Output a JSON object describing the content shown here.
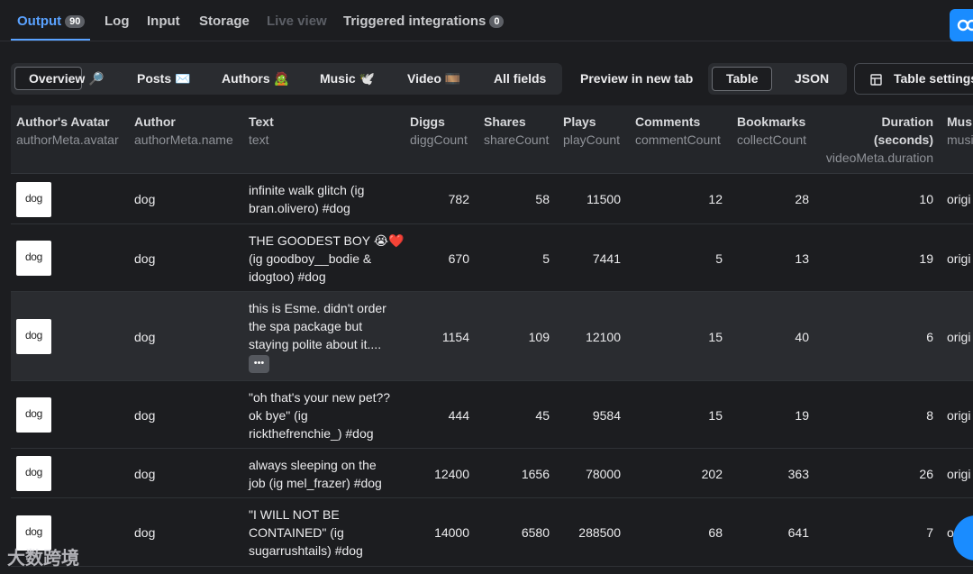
{
  "tabs": [
    {
      "label": "Output",
      "badge": "90"
    },
    {
      "label": "Log"
    },
    {
      "label": "Input"
    },
    {
      "label": "Storage"
    },
    {
      "label": "Live view"
    },
    {
      "label": "Triggered integrations",
      "badge": "0"
    }
  ],
  "views": [
    {
      "label": "Overview 🔎"
    },
    {
      "label": "Posts ✉️"
    },
    {
      "label": "Authors 🧟"
    },
    {
      "label": "Music 🕊️"
    },
    {
      "label": "Video 🎞️"
    },
    {
      "label": "All fields"
    }
  ],
  "preview_label": "Preview in new tab",
  "view_toggle": {
    "table": "Table",
    "json": "JSON"
  },
  "table_settings_label": "Table settings",
  "columns": [
    {
      "title": "Author's Avatar",
      "field": "authorMeta.avatar"
    },
    {
      "title": "Author",
      "field": "authorMeta.name"
    },
    {
      "title": "Text",
      "field": "text"
    },
    {
      "title": "Diggs",
      "field": "diggCount"
    },
    {
      "title": "Shares",
      "field": "shareCount"
    },
    {
      "title": "Plays",
      "field": "playCount"
    },
    {
      "title": "Comments",
      "field": "commentCount"
    },
    {
      "title": "Bookmarks",
      "field": "collectCount"
    },
    {
      "title": "Duration",
      "title2": "(seconds)",
      "field": "videoMeta.duration"
    },
    {
      "title": "Mus",
      "field": "musi"
    }
  ],
  "avatar_text": "dog",
  "rows": [
    {
      "author": "dog",
      "text": [
        "infinite walk glitch (ig",
        "bran.olivero) #dog"
      ],
      "diggs": "782",
      "shares": "58",
      "plays": "11500",
      "comments": "12",
      "bookmarks": "28",
      "duration": "10",
      "music": "origi"
    },
    {
      "author": "dog",
      "text": [
        "THE GOODEST BOY 😭❤️",
        "(ig goodboy__bodie &",
        "idogtoo) #dog"
      ],
      "diggs": "670",
      "shares": "5",
      "plays": "7441",
      "comments": "5",
      "bookmarks": "13",
      "duration": "19",
      "music": "origi"
    },
    {
      "author": "dog",
      "text": [
        "this is Esme. didn't order",
        "the spa package but",
        "staying polite about it...."
      ],
      "more": "•••",
      "diggs": "1154",
      "shares": "109",
      "plays": "12100",
      "comments": "15",
      "bookmarks": "40",
      "duration": "6",
      "music": "origi"
    },
    {
      "author": "dog",
      "text": [
        "\"oh that's your new pet??",
        "ok bye\" (ig",
        "rickthefrenchie_) #dog"
      ],
      "diggs": "444",
      "shares": "45",
      "plays": "9584",
      "comments": "15",
      "bookmarks": "19",
      "duration": "8",
      "music": "origi"
    },
    {
      "author": "dog",
      "text": [
        "always sleeping on the",
        "job (ig mel_frazer) #dog"
      ],
      "diggs": "12400",
      "shares": "1656",
      "plays": "78000",
      "comments": "202",
      "bookmarks": "363",
      "duration": "26",
      "music": "origi"
    },
    {
      "author": "dog",
      "text": [
        "\"I WILL NOT BE",
        "CONTAINED\" (ig",
        "sugarrushtails) #dog"
      ],
      "diggs": "14000",
      "shares": "6580",
      "plays": "288500",
      "comments": "68",
      "bookmarks": "641",
      "duration": "7",
      "music": "o"
    }
  ],
  "watermark": "大数跨境",
  "colors": {
    "accent": "#5aa2ff",
    "background": "#1c1d20",
    "brand_button": "#1a8cff"
  }
}
